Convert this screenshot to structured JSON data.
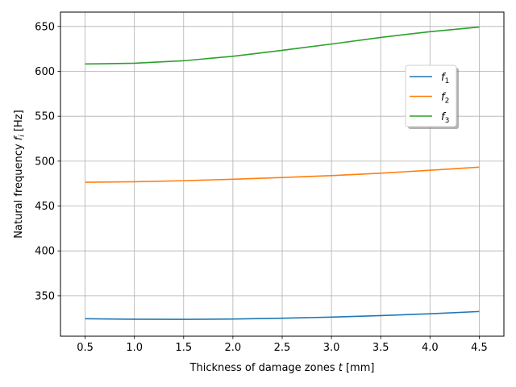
{
  "chart_data": {
    "type": "line",
    "title": "",
    "xlabel": "Thickness of damage zones t [mm]",
    "ylabel": "Natural frequency f_i [Hz]",
    "xlim": [
      0.25,
      4.75
    ],
    "ylim": [
      305,
      666
    ],
    "xticks": [
      0.5,
      1.0,
      1.5,
      2.0,
      2.5,
      3.0,
      3.5,
      4.0,
      4.5
    ],
    "xtick_labels": [
      "0.5",
      "1.0",
      "1.5",
      "2.0",
      "2.5",
      "3.0",
      "3.5",
      "4.0",
      "4.5"
    ],
    "yticks": [
      350,
      400,
      450,
      500,
      550,
      600,
      650
    ],
    "ytick_labels": [
      "350",
      "400",
      "450",
      "500",
      "550",
      "600",
      "650"
    ],
    "grid": true,
    "legend_position": "upper-right",
    "x": [
      0.5,
      1.0,
      1.5,
      2.0,
      2.5,
      3.0,
      3.5,
      4.0,
      4.5
    ],
    "series": [
      {
        "name": "f1",
        "label_base": "f",
        "label_sub": "1",
        "color": "#1f77b4",
        "values": [
          324.5,
          323.9,
          323.8,
          324.1,
          325.0,
          326.3,
          328.0,
          330.0,
          332.5
        ]
      },
      {
        "name": "f2",
        "label_base": "f",
        "label_sub": "2",
        "color": "#ff7f0e",
        "values": [
          476.5,
          477.0,
          478.2,
          479.8,
          481.7,
          483.9,
          486.6,
          489.8,
          493.3
        ]
      },
      {
        "name": "f3",
        "label_base": "f",
        "label_sub": "3",
        "color": "#2ca02c",
        "values": [
          608.2,
          609.0,
          611.8,
          616.8,
          623.4,
          630.4,
          637.8,
          644.2,
          649.3
        ]
      }
    ]
  }
}
